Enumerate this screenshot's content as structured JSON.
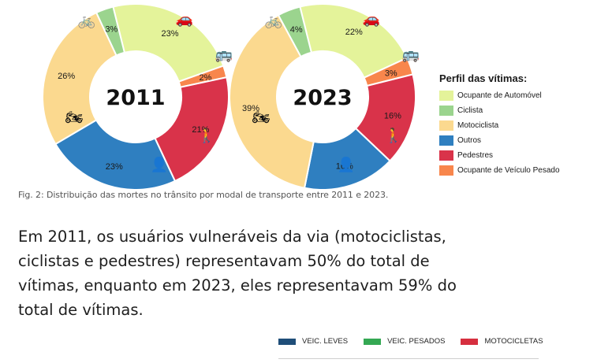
{
  "colors": {
    "ocupante_automovel": "#e4f39a",
    "ciclista": "#9bd48e",
    "motociclista": "#fbd98f",
    "outros": "#2f7fc0",
    "pedestres": "#d9334a",
    "veiculo_pesado": "#f8864c"
  },
  "chart_data": [
    {
      "type": "pie",
      "title": "2011",
      "categories": [
        "Ocupante de Automóvel",
        "Ciclista",
        "Motociclista",
        "Outros",
        "Pedestres",
        "Ocupante de Veículo Pesado"
      ],
      "values": [
        23,
        3,
        26,
        23,
        21,
        2
      ],
      "labels": [
        "23%",
        "3%",
        "26%",
        "23%",
        "21%",
        "2%"
      ]
    },
    {
      "type": "pie",
      "title": "2023",
      "categories": [
        "Ocupante de Automóvel",
        "Ciclista",
        "Motociclista",
        "Outros",
        "Pedestres",
        "Ocupante de Veículo Pesado"
      ],
      "values": [
        22,
        4,
        39,
        16,
        16,
        3
      ],
      "labels": [
        "22%",
        "4%",
        "39%",
        "16%",
        "16%",
        "3%"
      ]
    }
  ],
  "legend": {
    "title": "Perfil das vítimas:",
    "items": [
      {
        "label": "Ocupante de Automóvel",
        "color": "#e4f39a"
      },
      {
        "label": "Ciclista",
        "color": "#9bd48e"
      },
      {
        "label": "Motociclista",
        "color": "#fbd98f"
      },
      {
        "label": "Outros",
        "color": "#2f7fc0"
      },
      {
        "label": "Pedestres",
        "color": "#d9334a"
      },
      {
        "label": "Ocupante de Veículo Pesado",
        "color": "#f8864c"
      }
    ]
  },
  "icons": [
    "bicycle-icon",
    "car-icon",
    "bus-icon",
    "pedestrian-icon",
    "driver-icon",
    "motorcycle-icon"
  ],
  "caption": "Fig. 2: Distribuição das mortes no trânsito por modal de transporte entre 2011 e 2023.",
  "paragraph": {
    "line1": "Em 2011, os usuários vulneráveis da via (motociclistas,",
    "line2": "ciclistas e pedestres) representavam 50% do total de",
    "line3": "vítimas, enquanto em 2023, eles representavam 59% do",
    "line4": "total de vítimas."
  },
  "bottom_legend": [
    {
      "label": "VEIC. LEVES",
      "color": "#1f4e79"
    },
    {
      "label": "VEIC. PESADOS",
      "color": "#34a853"
    },
    {
      "label": "MOTOCICLETAS",
      "color": "#d62f3f"
    }
  ]
}
